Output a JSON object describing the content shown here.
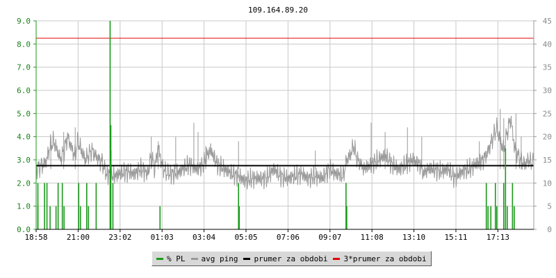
{
  "chart_data": {
    "type": "line",
    "title": "109.164.89.20",
    "x_tick_labels": [
      "18:58",
      "21:00",
      "23:02",
      "01:03",
      "03:04",
      "05:05",
      "07:06",
      "09:07",
      "11:08",
      "13:10",
      "15:11",
      "17:13"
    ],
    "y_left": {
      "ticks": [
        "0.0",
        "1.0",
        "2.0",
        "3.0",
        "4.0",
        "5.0",
        "6.0",
        "7.0",
        "8.0",
        "9.0"
      ],
      "range": [
        0,
        9
      ],
      "color": "#1a9a1a"
    },
    "y_right": {
      "ticks": [
        "0",
        "5",
        "10",
        "15",
        "20",
        "25",
        "30",
        "35",
        "40",
        "45"
      ],
      "range": [
        0,
        45
      ],
      "color": "#999999"
    },
    "x_range_minutes": [
      0,
      1426
    ],
    "grid": true,
    "series": [
      {
        "name": "% PL",
        "kind": "spikes",
        "axis": "left",
        "color": "#1a9a1a",
        "points": [
          [
            5,
            2.0
          ],
          [
            5,
            1.0
          ],
          [
            24,
            2.0
          ],
          [
            31,
            2.0
          ],
          [
            40,
            1.0
          ],
          [
            57,
            1.0
          ],
          [
            63,
            2.0
          ],
          [
            75,
            2.0
          ],
          [
            80,
            1.0
          ],
          [
            122,
            2.0
          ],
          [
            127,
            1.0
          ],
          [
            145,
            2.0
          ],
          [
            150,
            1.0
          ],
          [
            172,
            2.0
          ],
          [
            212,
            9.0
          ],
          [
            214,
            4.5
          ],
          [
            220,
            2.0
          ],
          [
            355,
            1.0
          ],
          [
            580,
            2.0
          ],
          [
            582,
            1.0
          ],
          [
            888,
            2.0
          ],
          [
            890,
            1.0
          ],
          [
            1290,
            2.0
          ],
          [
            1295,
            1.0
          ],
          [
            1303,
            1.0
          ],
          [
            1316,
            2.0
          ],
          [
            1320,
            1.0
          ],
          [
            1340,
            2.0
          ],
          [
            1345,
            3.5
          ],
          [
            1350,
            1.0
          ],
          [
            1365,
            2.0
          ],
          [
            1370,
            1.0
          ]
        ]
      },
      {
        "name": "avg ping",
        "kind": "line",
        "axis": "right",
        "color": "#999999",
        "points": [
          [
            0,
            13
          ],
          [
            10,
            13.5
          ],
          [
            20,
            14
          ],
          [
            30,
            15
          ],
          [
            40,
            18
          ],
          [
            50,
            19
          ],
          [
            60,
            17
          ],
          [
            70,
            15
          ],
          [
            80,
            17
          ],
          [
            90,
            20
          ],
          [
            100,
            18
          ],
          [
            110,
            16
          ],
          [
            120,
            19
          ],
          [
            130,
            17
          ],
          [
            140,
            15
          ],
          [
            150,
            16
          ],
          [
            160,
            17
          ],
          [
            170,
            16
          ],
          [
            180,
            15
          ],
          [
            190,
            14.5
          ],
          [
            200,
            12
          ],
          [
            220,
            11.5
          ],
          [
            240,
            12
          ],
          [
            260,
            12.5
          ],
          [
            280,
            12
          ],
          [
            300,
            13
          ],
          [
            320,
            12
          ],
          [
            330,
            16
          ],
          [
            340,
            13
          ],
          [
            350,
            18
          ],
          [
            360,
            14
          ],
          [
            370,
            12.5
          ],
          [
            380,
            12
          ],
          [
            400,
            12
          ],
          [
            420,
            13
          ],
          [
            440,
            14
          ],
          [
            460,
            13
          ],
          [
            480,
            14
          ],
          [
            490,
            16
          ],
          [
            500,
            17
          ],
          [
            520,
            14
          ],
          [
            540,
            13
          ],
          [
            560,
            12
          ],
          [
            580,
            11.5
          ],
          [
            600,
            10.5
          ],
          [
            620,
            11
          ],
          [
            640,
            11
          ],
          [
            660,
            11
          ],
          [
            680,
            13
          ],
          [
            700,
            11.5
          ],
          [
            720,
            11
          ],
          [
            740,
            11.5
          ],
          [
            760,
            12
          ],
          [
            780,
            11
          ],
          [
            800,
            11.5
          ],
          [
            820,
            11
          ],
          [
            840,
            13
          ],
          [
            860,
            12
          ],
          [
            880,
            11.5
          ],
          [
            890,
            15
          ],
          [
            900,
            16
          ],
          [
            910,
            18
          ],
          [
            920,
            15
          ],
          [
            930,
            14
          ],
          [
            940,
            13
          ],
          [
            960,
            14
          ],
          [
            980,
            15
          ],
          [
            1000,
            16
          ],
          [
            1020,
            14
          ],
          [
            1040,
            13
          ],
          [
            1060,
            14
          ],
          [
            1080,
            15
          ],
          [
            1100,
            14
          ],
          [
            1110,
            12
          ],
          [
            1120,
            13
          ],
          [
            1140,
            13
          ],
          [
            1160,
            12.5
          ],
          [
            1180,
            13
          ],
          [
            1200,
            11
          ],
          [
            1220,
            12.5
          ],
          [
            1240,
            13
          ],
          [
            1260,
            14
          ],
          [
            1280,
            15
          ],
          [
            1290,
            16
          ],
          [
            1300,
            18
          ],
          [
            1310,
            20
          ],
          [
            1320,
            22
          ],
          [
            1330,
            19
          ],
          [
            1340,
            17
          ],
          [
            1350,
            21
          ],
          [
            1360,
            24
          ],
          [
            1370,
            18
          ],
          [
            1380,
            16
          ],
          [
            1390,
            15
          ],
          [
            1400,
            14
          ],
          [
            1410,
            15
          ],
          [
            1426,
            14
          ]
        ],
        "spikes": [
          [
            42,
            20
          ],
          [
            79,
            21
          ],
          [
            112,
            22
          ],
          [
            215,
            17
          ],
          [
            330,
            20
          ],
          [
            350,
            19
          ],
          [
            400,
            20
          ],
          [
            452,
            23
          ],
          [
            464,
            21
          ],
          [
            486,
            18
          ],
          [
            580,
            19
          ],
          [
            800,
            17
          ],
          [
            960,
            23
          ],
          [
            1000,
            21
          ],
          [
            1064,
            22
          ],
          [
            1105,
            20
          ],
          [
            1270,
            19
          ],
          [
            1330,
            26
          ],
          [
            1340,
            24
          ],
          [
            1375,
            25
          ],
          [
            1390,
            20
          ]
        ]
      },
      {
        "name": "prumer za obdobi",
        "kind": "hline",
        "axis": "left",
        "color": "#000000",
        "value": 2.75
      },
      {
        "name": "3*prumer za obdobi",
        "kind": "hline",
        "axis": "left",
        "color": "#e00000",
        "value": 8.25
      }
    ],
    "legend_placement": "bottom-center"
  }
}
